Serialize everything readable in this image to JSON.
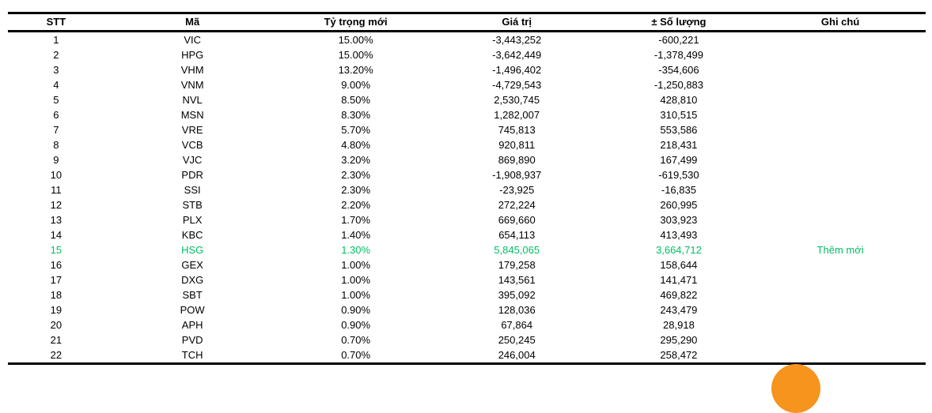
{
  "table": {
    "columns": [
      {
        "key": "stt",
        "label": "STT"
      },
      {
        "key": "ma",
        "label": "Mã"
      },
      {
        "key": "ty_trong",
        "label": "Tỷ trọng mới"
      },
      {
        "key": "gia_tri",
        "label": "Giá trị"
      },
      {
        "key": "so_luong",
        "label": "± Số lượng"
      },
      {
        "key": "ghi_chu",
        "label": "Ghi chú"
      }
    ],
    "rows": [
      {
        "stt": "1",
        "ma": "VIC",
        "ty_trong": "15.00%",
        "gia_tri": "-3,443,252",
        "so_luong": "-600,221",
        "ghi_chu": "",
        "highlight": false
      },
      {
        "stt": "2",
        "ma": "HPG",
        "ty_trong": "15.00%",
        "gia_tri": "-3,642,449",
        "so_luong": "-1,378,499",
        "ghi_chu": "",
        "highlight": false
      },
      {
        "stt": "3",
        "ma": "VHM",
        "ty_trong": "13.20%",
        "gia_tri": "-1,496,402",
        "so_luong": "-354,606",
        "ghi_chu": "",
        "highlight": false
      },
      {
        "stt": "4",
        "ma": "VNM",
        "ty_trong": "9.00%",
        "gia_tri": "-4,729,543",
        "so_luong": "-1,250,883",
        "ghi_chu": "",
        "highlight": false
      },
      {
        "stt": "5",
        "ma": "NVL",
        "ty_trong": "8.50%",
        "gia_tri": "2,530,745",
        "so_luong": "428,810",
        "ghi_chu": "",
        "highlight": false
      },
      {
        "stt": "6",
        "ma": "MSN",
        "ty_trong": "8.30%",
        "gia_tri": "1,282,007",
        "so_luong": "310,515",
        "ghi_chu": "",
        "highlight": false
      },
      {
        "stt": "7",
        "ma": "VRE",
        "ty_trong": "5.70%",
        "gia_tri": "745,813",
        "so_luong": "553,586",
        "ghi_chu": "",
        "highlight": false
      },
      {
        "stt": "8",
        "ma": "VCB",
        "ty_trong": "4.80%",
        "gia_tri": "920,811",
        "so_luong": "218,431",
        "ghi_chu": "",
        "highlight": false
      },
      {
        "stt": "9",
        "ma": "VJC",
        "ty_trong": "3.20%",
        "gia_tri": "869,890",
        "so_luong": "167,499",
        "ghi_chu": "",
        "highlight": false
      },
      {
        "stt": "10",
        "ma": "PDR",
        "ty_trong": "2.30%",
        "gia_tri": "-1,908,937",
        "so_luong": "-619,530",
        "ghi_chu": "",
        "highlight": false
      },
      {
        "stt": "11",
        "ma": "SSI",
        "ty_trong": "2.30%",
        "gia_tri": "-23,925",
        "so_luong": "-16,835",
        "ghi_chu": "",
        "highlight": false
      },
      {
        "stt": "12",
        "ma": "STB",
        "ty_trong": "2.20%",
        "gia_tri": "272,224",
        "so_luong": "260,995",
        "ghi_chu": "",
        "highlight": false
      },
      {
        "stt": "13",
        "ma": "PLX",
        "ty_trong": "1.70%",
        "gia_tri": "669,660",
        "so_luong": "303,923",
        "ghi_chu": "",
        "highlight": false
      },
      {
        "stt": "14",
        "ma": "KBC",
        "ty_trong": "1.40%",
        "gia_tri": "654,113",
        "so_luong": "413,493",
        "ghi_chu": "",
        "highlight": false
      },
      {
        "stt": "15",
        "ma": "HSG",
        "ty_trong": "1.30%",
        "gia_tri": "5,845,065",
        "so_luong": "3,664,712",
        "ghi_chu": "Thêm mới",
        "highlight": true
      },
      {
        "stt": "16",
        "ma": "GEX",
        "ty_trong": "1.00%",
        "gia_tri": "179,258",
        "so_luong": "158,644",
        "ghi_chu": "",
        "highlight": false
      },
      {
        "stt": "17",
        "ma": "DXG",
        "ty_trong": "1.00%",
        "gia_tri": "143,561",
        "so_luong": "141,471",
        "ghi_chu": "",
        "highlight": false
      },
      {
        "stt": "18",
        "ma": "SBT",
        "ty_trong": "1.00%",
        "gia_tri": "395,092",
        "so_luong": "469,822",
        "ghi_chu": "",
        "highlight": false
      },
      {
        "stt": "19",
        "ma": "POW",
        "ty_trong": "0.90%",
        "gia_tri": "128,036",
        "so_luong": "243,479",
        "ghi_chu": "",
        "highlight": false
      },
      {
        "stt": "20",
        "ma": "APH",
        "ty_trong": "0.90%",
        "gia_tri": "67,864",
        "so_luong": "28,918",
        "ghi_chu": "",
        "highlight": false
      },
      {
        "stt": "21",
        "ma": "PVD",
        "ty_trong": "0.70%",
        "gia_tri": "250,245",
        "so_luong": "295,290",
        "ghi_chu": "",
        "highlight": false
      },
      {
        "stt": "22",
        "ma": "TCH",
        "ty_trong": "0.70%",
        "gia_tri": "246,004",
        "so_luong": "258,472",
        "ghi_chu": "",
        "highlight": false
      }
    ],
    "colors": {
      "highlight_green": "#00bf63",
      "text": "#000000",
      "border": "#000000"
    }
  },
  "decor": {
    "orange_circle_color": "#f7941d"
  }
}
